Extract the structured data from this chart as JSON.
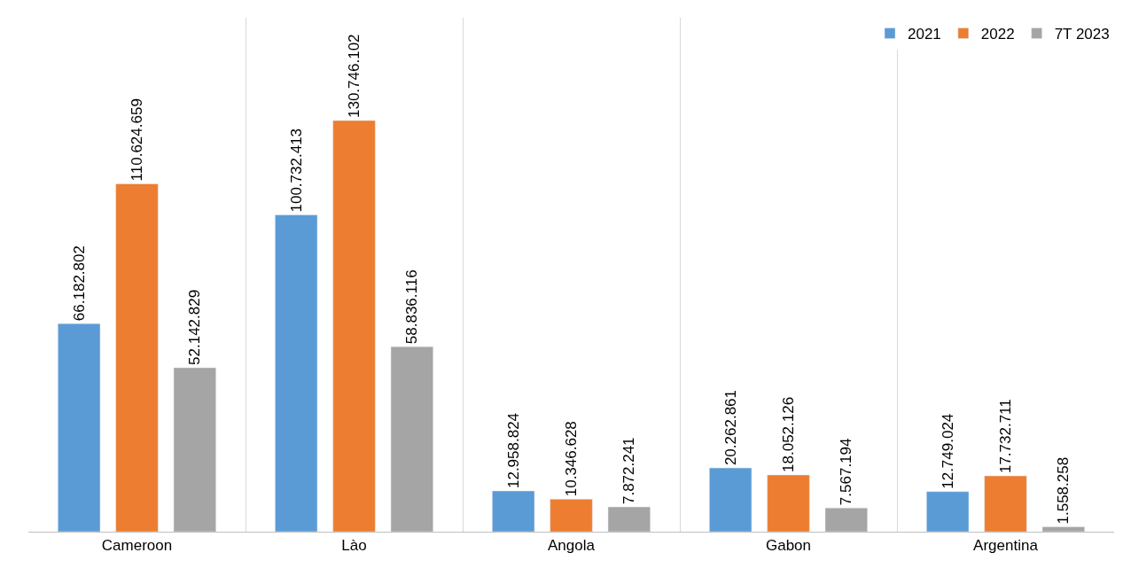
{
  "chart_data": {
    "type": "bar",
    "categories": [
      "Cameroon",
      "Lào",
      "Angola",
      "Gabon",
      "Argentina"
    ],
    "series": [
      {
        "name": "2021",
        "color": "#5b9bd5",
        "values": [
          66182802,
          100732413,
          12958824,
          20262861,
          12749024
        ],
        "value_labels": [
          "66.182.802",
          "100.732.413",
          "12.958.824",
          "20.262.861",
          "12.749.024"
        ]
      },
      {
        "name": "2022",
        "color": "#ed7d31",
        "values": [
          110624659,
          130746102,
          10346628,
          18052126,
          17732711
        ],
        "value_labels": [
          "110.624.659",
          "130.746.102",
          "10.346.628",
          "18.052.126",
          "17.732.711"
        ]
      },
      {
        "name": "7T 2023",
        "color": "#a5a5a5",
        "values": [
          52142829,
          58836116,
          7872241,
          7567194,
          1558258
        ],
        "value_labels": [
          "52.142.829",
          "58.836.116",
          "7.872.241",
          "7.567.194",
          "1.558.258"
        ]
      }
    ],
    "grid": "x",
    "legend": "top right",
    "tick_labels": "x"
  }
}
